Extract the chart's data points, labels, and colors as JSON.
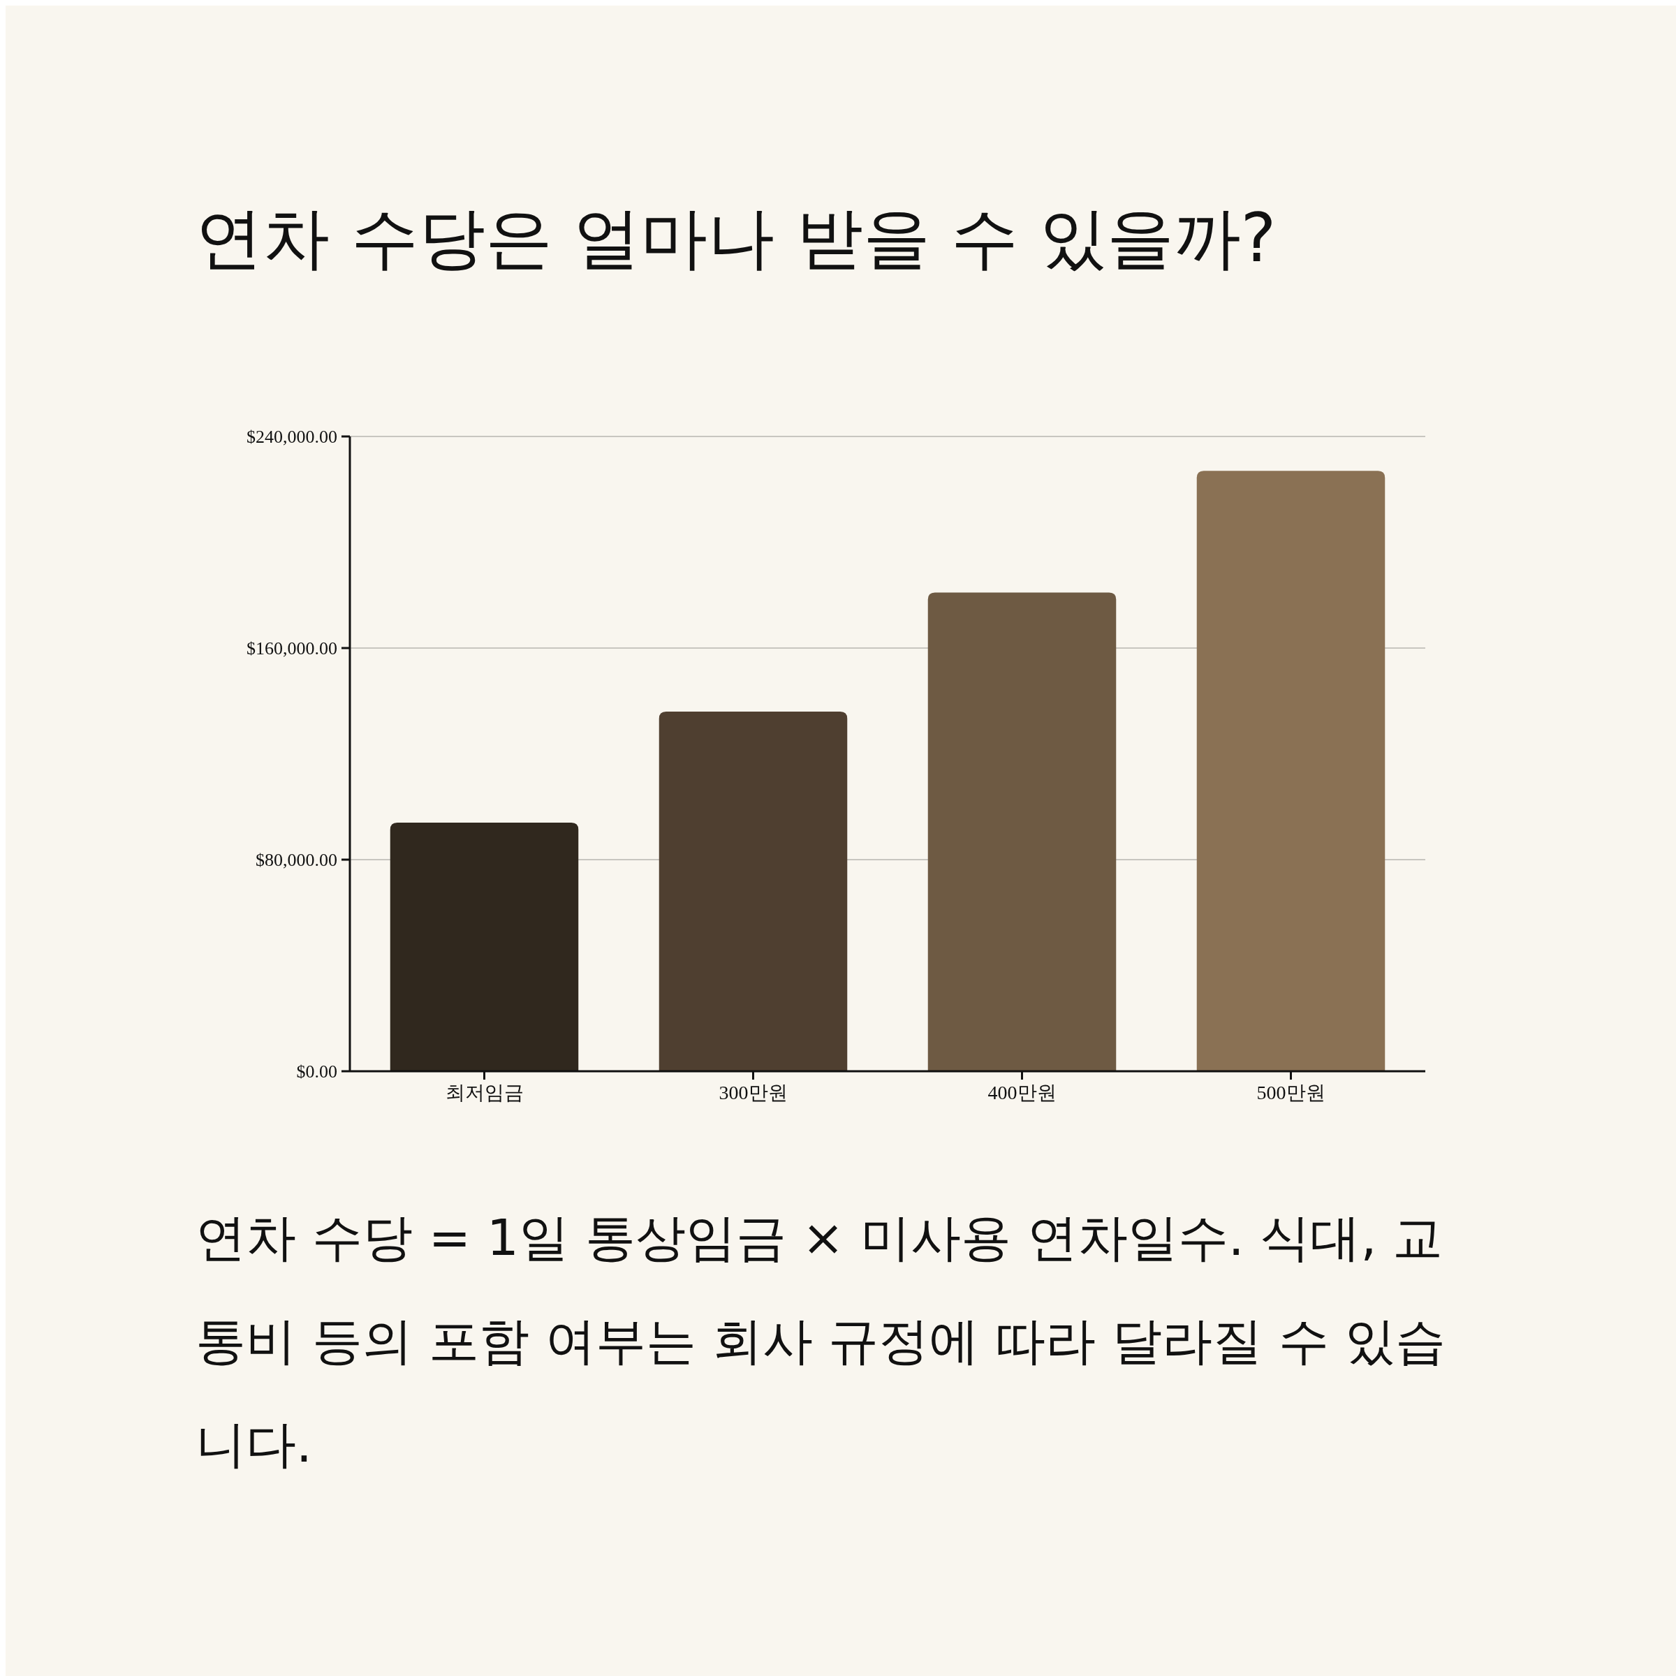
{
  "chart_data": {
    "type": "bar",
    "title": "연차 수당은 얼마나 받을 수 있을까?",
    "categories": [
      "최저임금",
      "300만원",
      "400만원",
      "500만원"
    ],
    "values": [
      94000,
      136000,
      181000,
      227000
    ],
    "colors": [
      "#30281e",
      "#4f3f30",
      "#6e5a43",
      "#8a7154"
    ],
    "ylim": [
      0,
      240000
    ],
    "yticks": [
      {
        "value": 0,
        "label": "$0.00"
      },
      {
        "value": 80000,
        "label": "$80,000.00"
      },
      {
        "value": 160000,
        "label": "$160,000.00"
      },
      {
        "value": 240000,
        "label": "$240,000.00"
      }
    ],
    "grid": "y",
    "annotations": [
      "연차 수당 = 1일 통상임금 × 미사용 연차일수. 식대, 교통비 등의 포함 여부는 회사 규정에 따라 달라질 수 있습니다."
    ]
  }
}
